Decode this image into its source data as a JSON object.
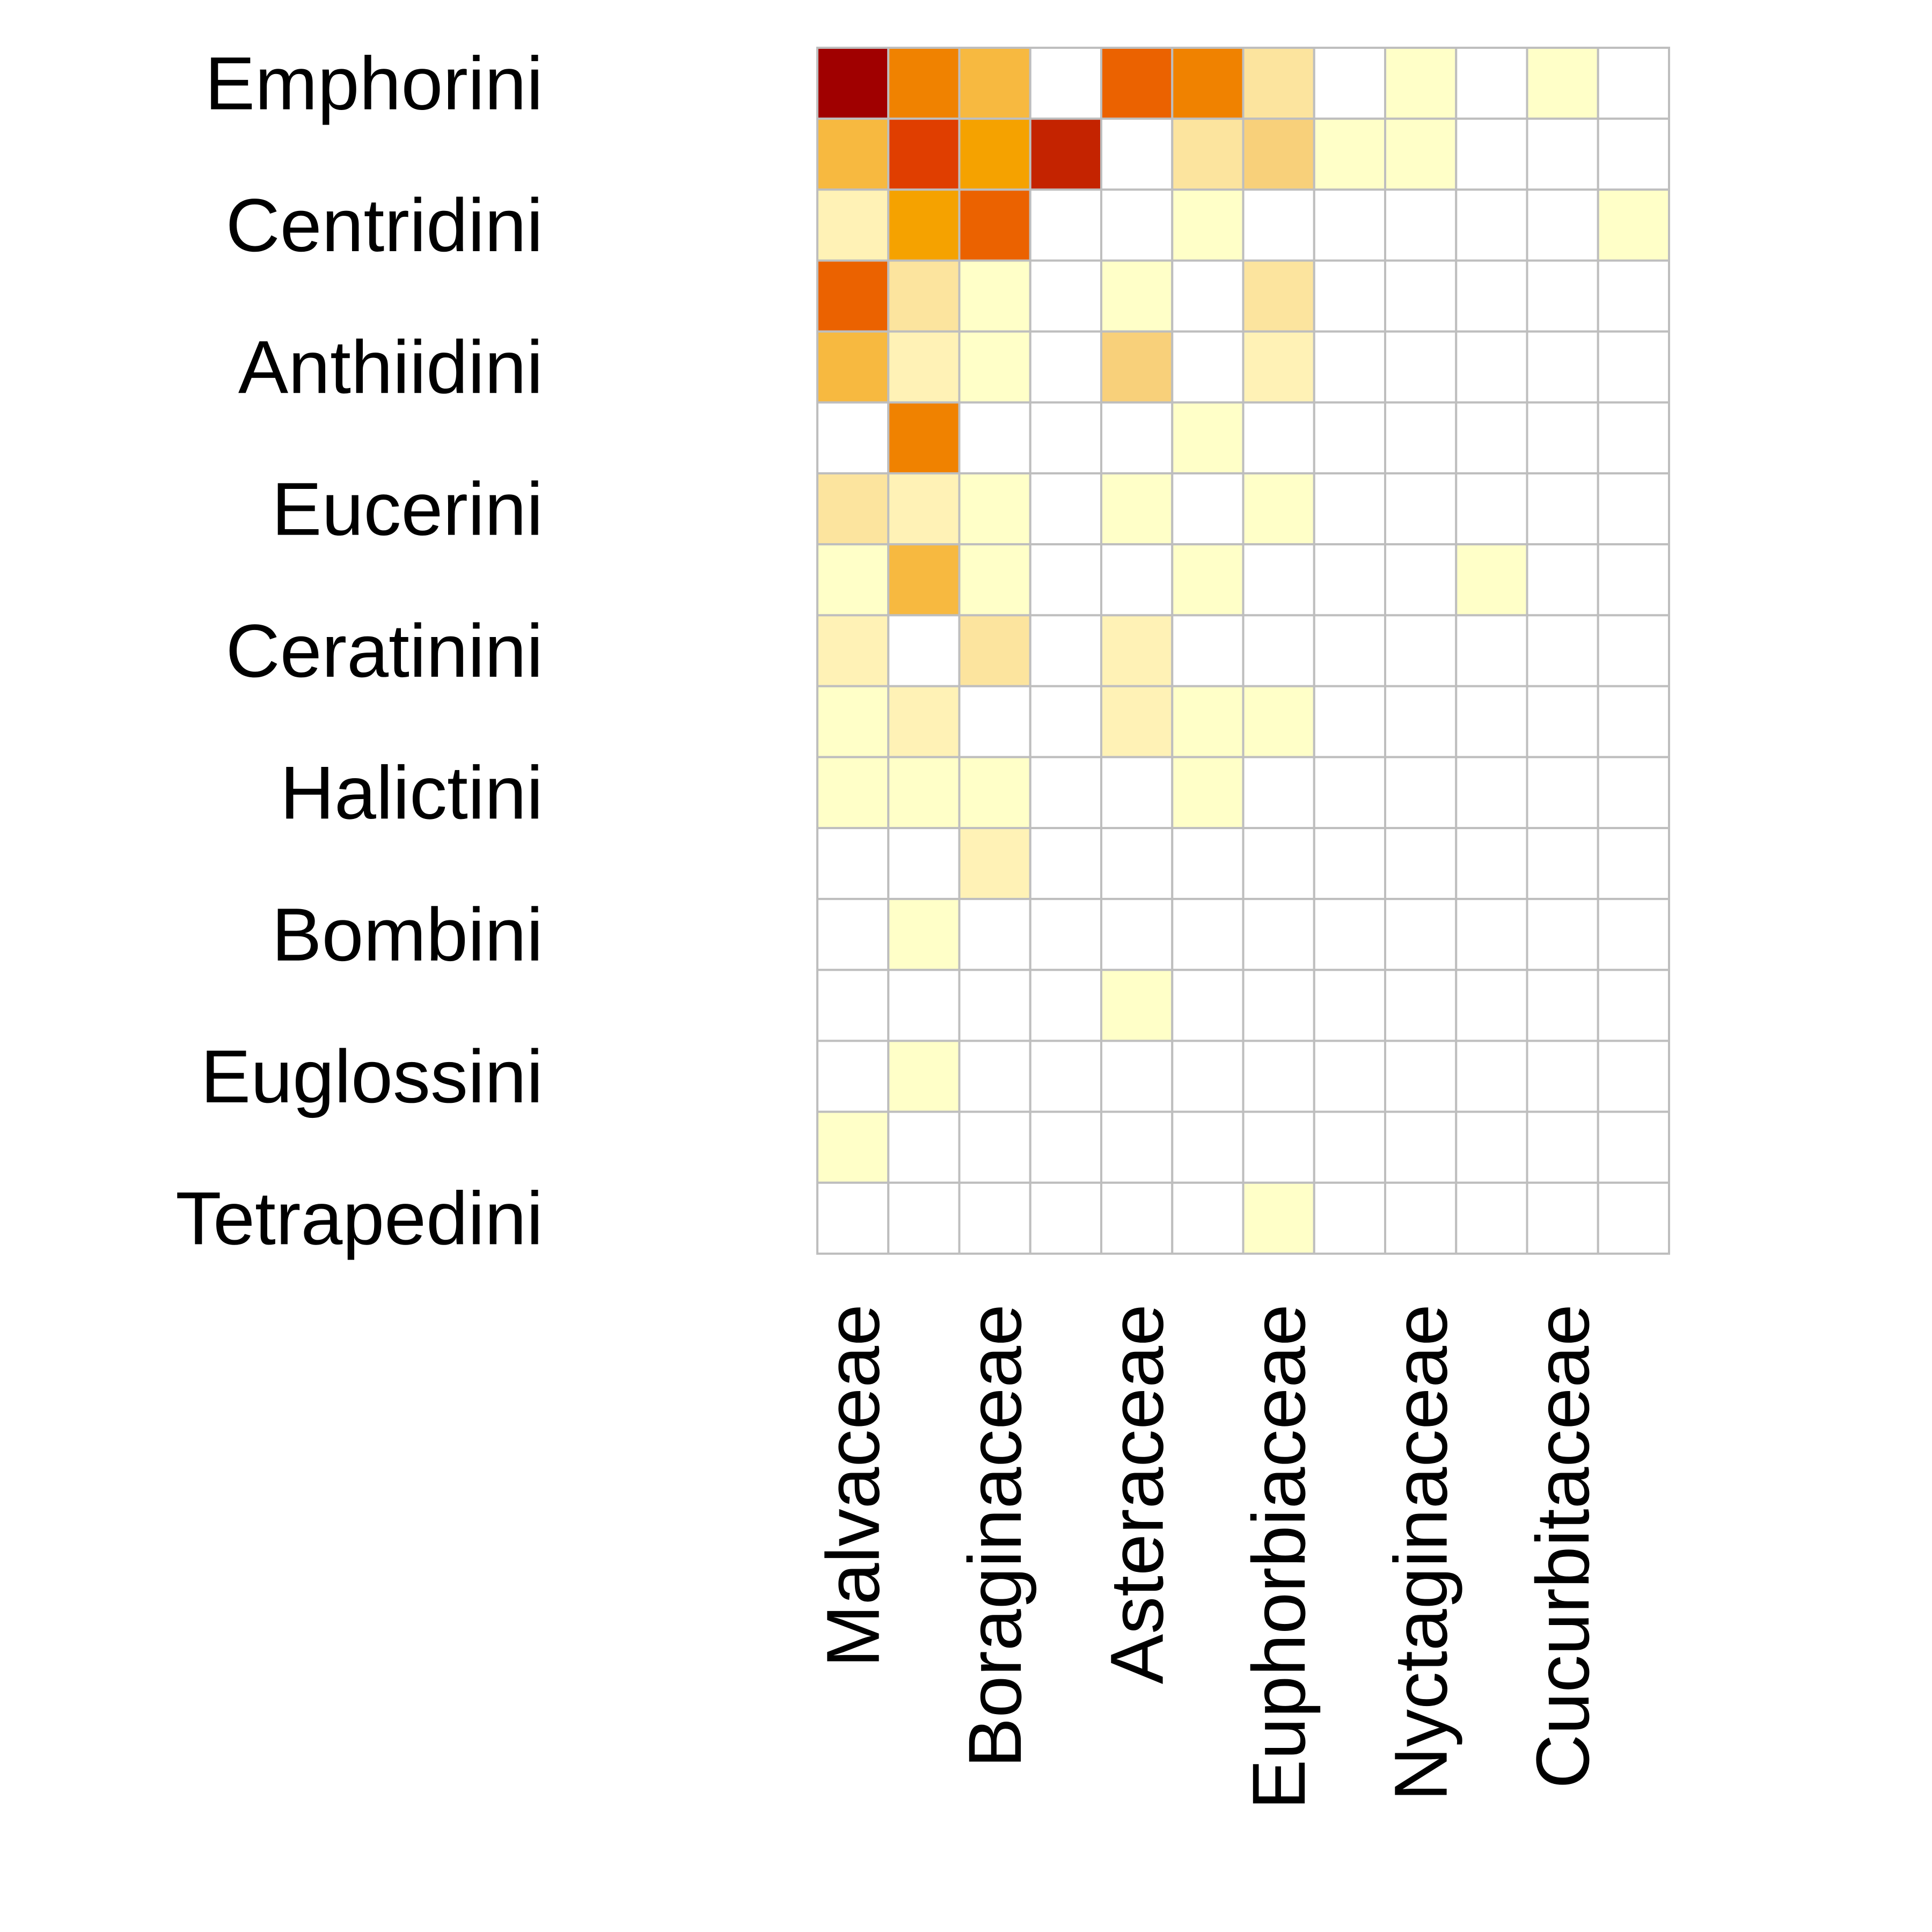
{
  "chart_data": {
    "type": "heatmap",
    "title": "",
    "xlabel": "",
    "ylabel": "",
    "grid": true,
    "grid_color": "#bebebe",
    "legend": "none",
    "colorscale": [
      "#ffffc8",
      "#fff2b6",
      "#fce49e",
      "#f8d07a",
      "#f7b940",
      "#f5a200",
      "#f08200",
      "#eb6200",
      "#e03e00",
      "#c42300",
      "#a00000",
      "#7d0025"
    ],
    "rows": [
      "Emphorini",
      "",
      "Centridini",
      "",
      "Anthiidini",
      "",
      "Eucerini",
      "",
      "Ceratinini",
      "",
      "Halictini",
      "",
      "Bombini",
      "",
      "Euglossini",
      "",
      "Tetrapedini"
    ],
    "columns": [
      "Malvaceae",
      "",
      "Boraginaceae",
      "",
      "Asteraceae",
      "",
      "Euphorbiaceae",
      "",
      "Nyctaginaceae",
      "",
      "Cucurbitaceae",
      ""
    ],
    "values": [
      [
        11,
        7,
        5,
        0,
        8,
        7,
        3,
        0,
        0.5,
        0,
        0.5,
        0
      ],
      [
        5,
        9,
        6,
        10,
        0,
        3,
        4,
        1,
        0.5,
        0,
        0,
        0
      ],
      [
        2,
        6,
        8,
        0,
        0,
        0.5,
        0,
        0,
        0,
        0,
        0,
        0.5
      ],
      [
        8,
        3,
        0.5,
        0,
        1,
        0,
        3,
        0,
        0,
        0,
        0,
        0
      ],
      [
        5,
        2,
        0.5,
        0,
        4,
        0,
        2,
        0,
        0,
        0,
        0,
        0
      ],
      [
        0,
        7,
        0,
        0,
        0,
        0.5,
        0,
        0,
        0,
        0,
        0,
        0
      ],
      [
        3,
        2,
        0.5,
        0,
        0.5,
        0,
        1,
        0,
        0,
        0,
        0,
        0
      ],
      [
        0.5,
        5,
        0.5,
        0,
        0,
        1,
        0,
        0,
        0,
        0.5,
        0,
        0
      ],
      [
        2,
        0,
        3,
        0,
        2,
        0,
        0,
        0,
        0,
        0,
        0,
        0
      ],
      [
        1,
        2,
        0,
        0,
        2,
        0.5,
        0.5,
        0,
        0,
        0,
        0,
        0
      ],
      [
        0.5,
        1,
        1,
        0,
        0,
        0.5,
        0,
        0,
        0,
        0,
        0,
        0
      ],
      [
        0,
        0,
        2,
        0,
        0,
        0,
        0,
        0,
        0,
        0,
        0,
        0
      ],
      [
        0,
        1,
        0,
        0,
        0,
        0,
        0,
        0,
        0,
        0,
        0,
        0
      ],
      [
        0,
        0,
        0,
        0,
        0.5,
        0,
        0,
        0,
        0,
        0,
        0,
        0
      ],
      [
        0,
        0.5,
        0,
        0,
        0,
        0,
        0,
        0,
        0,
        0,
        0,
        0
      ],
      [
        0.5,
        0,
        0,
        0,
        0,
        0,
        0,
        0,
        0,
        0,
        0,
        0
      ],
      [
        0,
        0,
        0,
        0,
        0,
        0,
        0.5,
        0,
        0,
        0,
        0,
        0
      ]
    ]
  }
}
